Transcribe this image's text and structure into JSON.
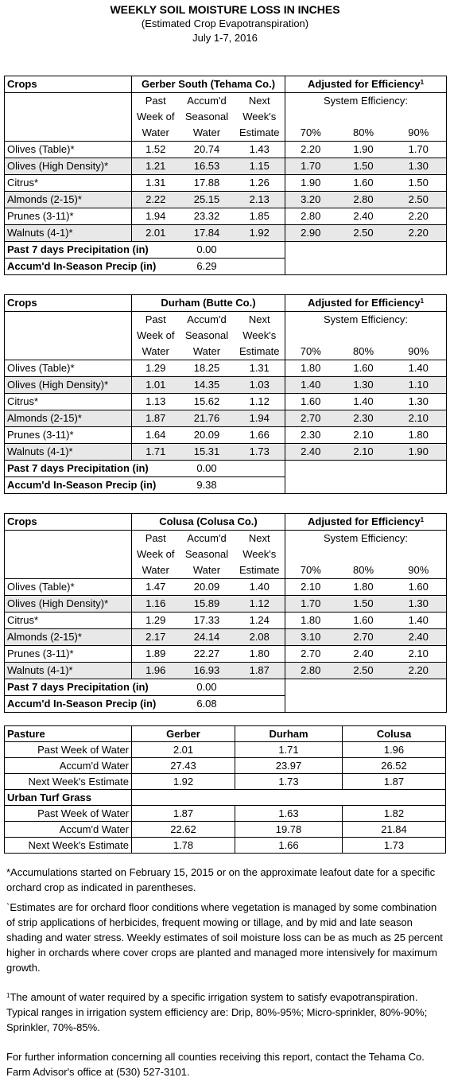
{
  "header": {
    "title": "WEEKLY SOIL MOISTURE LOSS IN INCHES",
    "subtitle": "(Estimated Crop Evapotranspiration)",
    "dates": "July 1-7, 2016"
  },
  "common": {
    "crops_label": "Crops",
    "adj_label": "Adjusted for Efficiency",
    "adj_sup": "1",
    "sys_eff": "System Efficiency:",
    "col1": [
      "Past",
      "Week of",
      "Water"
    ],
    "col2": [
      "Accum'd",
      "Seasonal",
      "Water"
    ],
    "col3": [
      "Next",
      "Week's",
      "Estimate"
    ],
    "eff": [
      "70%",
      "80%",
      "90%"
    ],
    "precip7_label": "Past 7 days Precipitation (in)",
    "accum_precip_label": "Accum'd In-Season Precip (in)"
  },
  "regions": [
    {
      "name": "Gerber South (Tehama Co.)",
      "rows": [
        {
          "crop": "Olives (Table)*",
          "v": [
            "1.52",
            "20.74",
            "1.43",
            "2.20",
            "1.90",
            "1.70"
          ]
        },
        {
          "crop": "Olives (High Density)*",
          "v": [
            "1.21",
            "16.53",
            "1.15",
            "1.70",
            "1.50",
            "1.30"
          ]
        },
        {
          "crop": "Citrus*",
          "v": [
            "1.31",
            "17.88",
            "1.26",
            "1.90",
            "1.60",
            "1.50"
          ]
        },
        {
          "crop": "Almonds (2-15)*",
          "v": [
            "2.22",
            "25.15",
            "2.13",
            "3.20",
            "2.80",
            "2.50"
          ]
        },
        {
          "crop": "Prunes (3-11)*",
          "v": [
            "1.94",
            "23.32",
            "1.85",
            "2.80",
            "2.40",
            "2.20"
          ]
        },
        {
          "crop": "Walnuts (4-1)*",
          "v": [
            "2.01",
            "17.84",
            "1.92",
            "2.90",
            "2.50",
            "2.20"
          ]
        }
      ],
      "precip7": "0.00",
      "accum_precip": "6.29"
    },
    {
      "name": "Durham (Butte Co.)",
      "rows": [
        {
          "crop": "Olives (Table)*",
          "v": [
            "1.29",
            "18.25",
            "1.31",
            "1.80",
            "1.60",
            "1.40"
          ]
        },
        {
          "crop": "Olives (High Density)*",
          "v": [
            "1.01",
            "14.35",
            "1.03",
            "1.40",
            "1.30",
            "1.10"
          ]
        },
        {
          "crop": "Citrus*",
          "v": [
            "1.13",
            "15.62",
            "1.12",
            "1.60",
            "1.40",
            "1.30"
          ]
        },
        {
          "crop": "Almonds (2-15)*",
          "v": [
            "1.87",
            "21.76",
            "1.94",
            "2.70",
            "2.30",
            "2.10"
          ]
        },
        {
          "crop": "Prunes (3-11)*",
          "v": [
            "1.64",
            "20.09",
            "1.66",
            "2.30",
            "2.10",
            "1.80"
          ]
        },
        {
          "crop": "Walnuts (4-1)*",
          "v": [
            "1.71",
            "15.31",
            "1.73",
            "2.40",
            "2.10",
            "1.90"
          ]
        }
      ],
      "precip7": "0.00",
      "accum_precip": "9.38"
    },
    {
      "name": "Colusa (Colusa Co.)",
      "rows": [
        {
          "crop": "Olives (Table)*",
          "v": [
            "1.47",
            "20.09",
            "1.40",
            "2.10",
            "1.80",
            "1.60"
          ]
        },
        {
          "crop": "Olives (High Density)*",
          "v": [
            "1.16",
            "15.89",
            "1.12",
            "1.70",
            "1.50",
            "1.30"
          ]
        },
        {
          "crop": "Citrus*",
          "v": [
            "1.29",
            "17.33",
            "1.24",
            "1.80",
            "1.60",
            "1.40"
          ]
        },
        {
          "crop": "Almonds (2-15)*",
          "v": [
            "2.17",
            "24.14",
            "2.08",
            "3.10",
            "2.70",
            "2.40"
          ]
        },
        {
          "crop": "Prunes (3-11)*",
          "v": [
            "1.89",
            "22.27",
            "1.80",
            "2.70",
            "2.40",
            "2.10"
          ]
        },
        {
          "crop": "Walnuts (4-1)*",
          "v": [
            "1.96",
            "16.93",
            "1.87",
            "2.80",
            "2.50",
            "2.20"
          ]
        }
      ],
      "precip7": "0.00",
      "accum_precip": "6.08"
    }
  ],
  "pasture": {
    "title": "Pasture",
    "cols": [
      "Gerber",
      "Durham",
      "Colusa"
    ],
    "rows": [
      {
        "label": "Past Week of Water",
        "v": [
          "2.01",
          "1.71",
          "1.96"
        ]
      },
      {
        "label": "Accum'd Water",
        "v": [
          "27.43",
          "23.97",
          "26.52"
        ]
      },
      {
        "label": "Next Week's Estimate",
        "v": [
          "1.92",
          "1.73",
          "1.87"
        ]
      }
    ],
    "turf_title": "Urban Turf Grass",
    "turf_rows": [
      {
        "label": "Past Week of Water",
        "v": [
          "1.87",
          "1.63",
          "1.82"
        ]
      },
      {
        "label": "Accum'd Water",
        "v": [
          "22.62",
          "19.78",
          "21.84"
        ]
      },
      {
        "label": "Next Week's Estimate",
        "v": [
          "1.78",
          "1.66",
          "1.73"
        ]
      }
    ]
  },
  "notes": {
    "accum": "*Accumulations started on February 15, 2015 or on the approximate leafout date for a specific orchard crop as indicated in parentheses.",
    "estimates": "`Estimates are for orchard floor conditions where vegetation is managed by some combination of strip applications of herbicides, frequent mowing or tillage, and by mid and late season shading and water stress.  Weekly estimates of soil moisture loss can be as much as 25 percent higher in orchards where cover crops are planted and managed more intensively for maximum growth.",
    "footnote_mark": "1",
    "footnote": "The amount of water required by a specific irrigation system to satisfy evapotranspiration. Typical ranges in irrigation system efficiency are: Drip, 80%-95%; Micro-sprinkler, 80%-90%; Sprinkler, 70%-85%.",
    "contact": "For further information concerning all counties receiving this report, contact the Tehama Co. Farm Advisor's office at (530) 527-3101."
  }
}
